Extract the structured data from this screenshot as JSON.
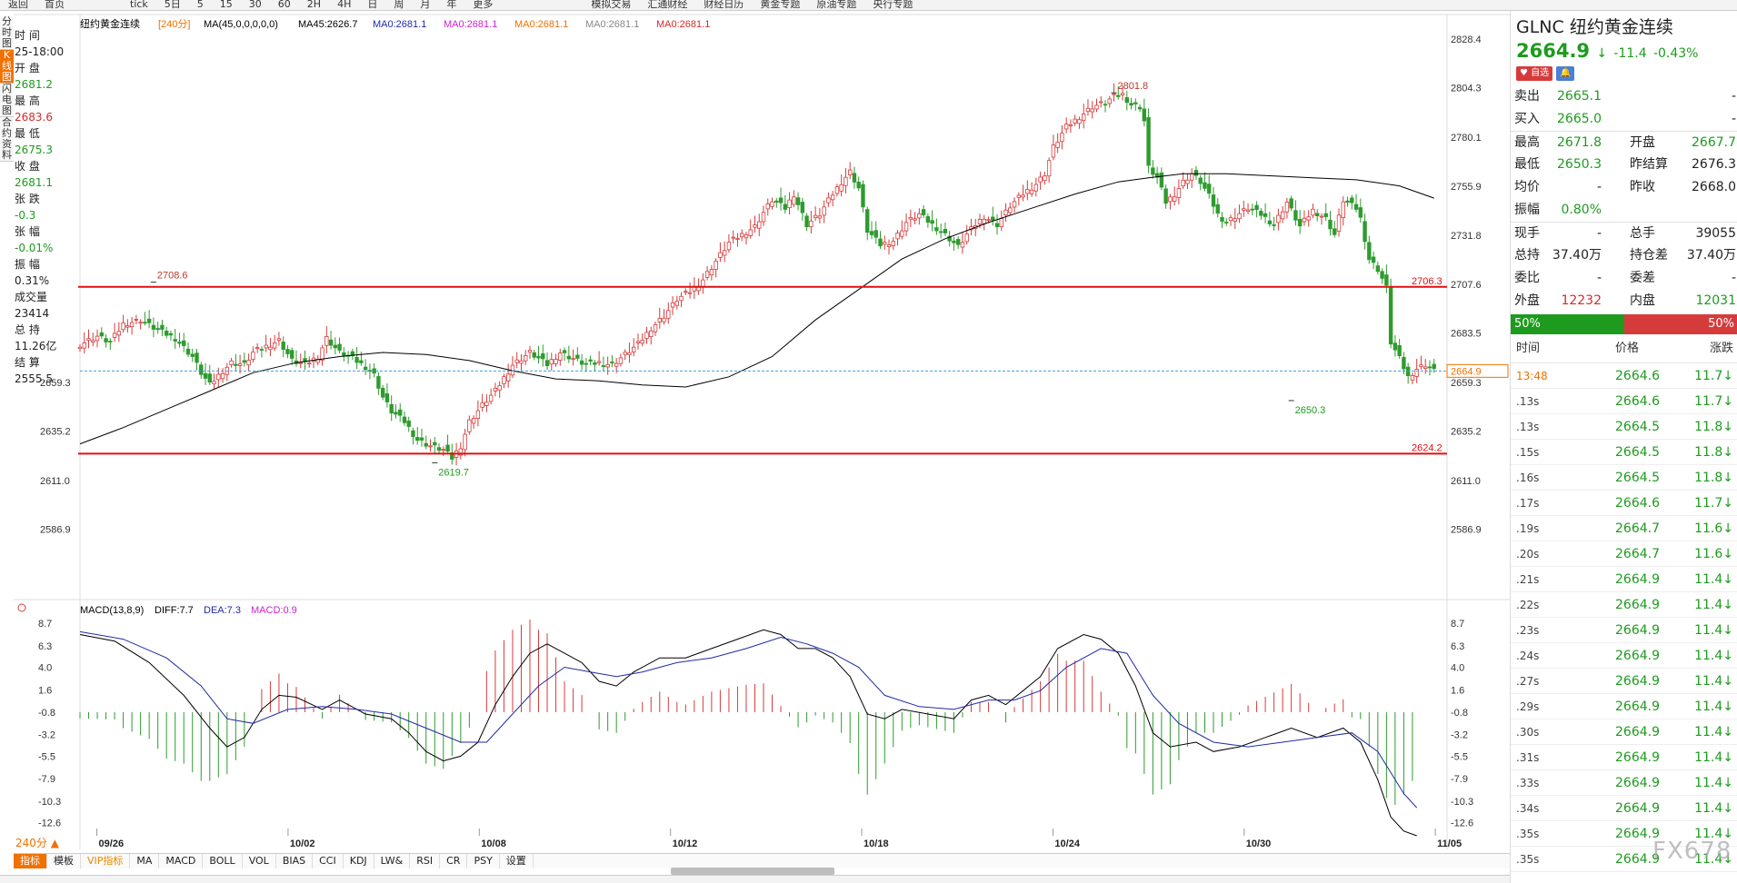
{
  "toolbar": [
    "返回",
    "首页",
    "",
    "",
    "",
    "tick",
    "5日",
    "5",
    "15",
    "30",
    "60",
    "2H",
    "4H",
    "日",
    "周",
    "月",
    "年",
    "更多",
    "",
    "",
    "",
    "",
    "",
    "模拟交易",
    "汇通财经",
    "财经日历",
    "黄金专题",
    "原油专题",
    "央行专题"
  ],
  "left_tabs": [
    "分时图",
    "K线图",
    "闪电图",
    "合约资料"
  ],
  "info": [
    {
      "label": "时 间",
      "value": "25-18:00",
      "color": "#222"
    },
    {
      "label": "开 盘",
      "value": "2681.2",
      "color": "#1e9b1e"
    },
    {
      "label": "最 高",
      "value": "2683.6",
      "color": "#d42a2a"
    },
    {
      "label": "最 低",
      "value": "2675.3",
      "color": "#1e9b1e"
    },
    {
      "label": "收 盘",
      "value": "2681.1",
      "color": "#1e9b1e"
    },
    {
      "label": "张 跌",
      "value": "-0.3",
      "color": "#1e9b1e"
    },
    {
      "label": "张 幅",
      "value": "-0.01%",
      "color": "#1e9b1e"
    },
    {
      "label": "振 幅",
      "value": "0.31%",
      "color": "#222"
    },
    {
      "label": "成交量",
      "value": "23414",
      "color": "#222"
    },
    {
      "label": "总 持",
      "value": "11.26亿",
      "color": "#222"
    },
    {
      "label": "结 算",
      "value": "2555.5",
      "color": "#222"
    }
  ],
  "chart_data": {
    "type": "candlestick",
    "legend": [
      {
        "text": "纽约黄金连续",
        "color": "#000000"
      },
      {
        "text": "[240分]",
        "color": "#f07000"
      },
      {
        "text": "MA(45,0,0,0,0,0)",
        "color": "#000000"
      },
      {
        "text": "MA45:2626.7",
        "color": "#000000"
      },
      {
        "text": "MA0:2681.1",
        "color": "#1f2aa6"
      },
      {
        "text": "MA0:2681.1",
        "color": "#d020d0"
      },
      {
        "text": "MA0:2681.1",
        "color": "#f07000"
      },
      {
        "text": "MA0:2681.1",
        "color": "#888888"
      },
      {
        "text": "MA0:2681.1",
        "color": "#d42a2a"
      }
    ],
    "y_range": [
      2568,
      2835
    ],
    "y_ticks": [
      "2828.4",
      "2804.3",
      "2780.1",
      "2755.9",
      "2731.8",
      "2707.6",
      "2683.5",
      "2659.3",
      "2635.2",
      "2611.0",
      "2586.9"
    ],
    "x_labels": [
      "09/26",
      "10/02",
      "10/08",
      "10/12",
      "10/18",
      "10/24",
      "10/30",
      "11/05"
    ],
    "x_label_index": [
      3,
      37,
      71,
      105,
      139,
      173,
      207,
      241
    ],
    "bars_total": 265,
    "close_path": [
      [
        0,
        2678
      ],
      [
        4,
        2682
      ],
      [
        7,
        2679
      ],
      [
        10,
        2688
      ],
      [
        14,
        2690
      ],
      [
        18,
        2685
      ],
      [
        22,
        2681
      ],
      [
        26,
        2672
      ],
      [
        28,
        2664
      ],
      [
        30,
        2658
      ],
      [
        33,
        2665
      ],
      [
        35,
        2669
      ],
      [
        38,
        2668
      ],
      [
        40,
        2674
      ],
      [
        43,
        2677
      ],
      [
        46,
        2680
      ],
      [
        49,
        2670
      ],
      [
        52,
        2668
      ],
      [
        55,
        2672
      ],
      [
        57,
        2681
      ],
      [
        60,
        2674
      ],
      [
        63,
        2671
      ],
      [
        66,
        2667
      ],
      [
        68,
        2663
      ],
      [
        70,
        2652
      ],
      [
        72,
        2645
      ],
      [
        75,
        2640
      ],
      [
        78,
        2631
      ],
      [
        81,
        2628
      ],
      [
        84,
        2626
      ],
      [
        86,
        2622
      ],
      [
        88,
        2628
      ],
      [
        90,
        2640
      ],
      [
        93,
        2648
      ],
      [
        96,
        2655
      ],
      [
        100,
        2668
      ],
      [
        104,
        2674
      ],
      [
        108,
        2668
      ],
      [
        111,
        2674
      ],
      [
        114,
        2671
      ],
      [
        117,
        2668
      ],
      [
        120,
        2669
      ],
      [
        123,
        2668
      ],
      [
        126,
        2673
      ],
      [
        129,
        2678
      ],
      [
        132,
        2686
      ],
      [
        135,
        2692
      ],
      [
        138,
        2700
      ],
      [
        141,
        2704
      ],
      [
        144,
        2710
      ],
      [
        147,
        2719
      ],
      [
        150,
        2728
      ],
      [
        153,
        2732
      ],
      [
        156,
        2736
      ],
      [
        158,
        2743
      ],
      [
        160,
        2749
      ],
      [
        163,
        2745
      ],
      [
        165,
        2752
      ],
      [
        168,
        2737
      ],
      [
        171,
        2742
      ],
      [
        174,
        2752
      ],
      [
        176,
        2758
      ],
      [
        178,
        2763
      ],
      [
        180,
        2755
      ],
      [
        182,
        2734
      ],
      [
        185,
        2727
      ],
      [
        188,
        2729
      ],
      [
        191,
        2738
      ],
      [
        194,
        2742
      ],
      [
        197,
        2737
      ],
      [
        200,
        2732
      ],
      [
        203,
        2726
      ],
      [
        205,
        2732
      ],
      [
        207,
        2737
      ],
      [
        209,
        2741
      ],
      [
        212,
        2737
      ],
      [
        215,
        2746
      ],
      [
        218,
        2752
      ],
      [
        221,
        2757
      ],
      [
        223,
        2762
      ],
      [
        225,
        2775
      ],
      [
        228,
        2785
      ],
      [
        231,
        2790
      ],
      [
        234,
        2795
      ],
      [
        237,
        2797
      ],
      [
        239,
        2800
      ],
      [
        241,
        2801
      ],
      [
        243,
        2796
      ],
      [
        245,
        2795
      ],
      [
        246,
        2788
      ],
      [
        247,
        2765
      ],
      [
        249,
        2760
      ],
      [
        251,
        2748
      ],
      [
        253,
        2752
      ],
      [
        255,
        2758
      ],
      [
        257,
        2762
      ],
      [
        259,
        2758
      ],
      [
        261,
        2751
      ],
      [
        263,
        2742
      ],
      [
        265,
        2738
      ],
      [
        267,
        2741
      ],
      [
        270,
        2745
      ],
      [
        273,
        2742
      ],
      [
        276,
        2737
      ],
      [
        279,
        2748
      ],
      [
        282,
        2736
      ],
      [
        285,
        2744
      ],
      [
        288,
        2740
      ],
      [
        290,
        2732
      ],
      [
        292,
        2749
      ],
      [
        295,
        2745
      ],
      [
        296,
        2740
      ],
      [
        298,
        2720
      ],
      [
        300,
        2715
      ],
      [
        302,
        2706
      ],
      [
        303,
        2679
      ],
      [
        305,
        2671
      ],
      [
        307,
        2662
      ],
      [
        309,
        2666
      ],
      [
        311,
        2668
      ],
      [
        313,
        2665
      ]
    ],
    "ma45_path": [
      [
        0,
        2629
      ],
      [
        10,
        2637
      ],
      [
        20,
        2646
      ],
      [
        30,
        2655
      ],
      [
        40,
        2664
      ],
      [
        50,
        2669
      ],
      [
        60,
        2672
      ],
      [
        70,
        2674
      ],
      [
        80,
        2673
      ],
      [
        90,
        2670
      ],
      [
        100,
        2665
      ],
      [
        110,
        2661
      ],
      [
        120,
        2660
      ],
      [
        130,
        2658
      ],
      [
        140,
        2657
      ],
      [
        150,
        2662
      ],
      [
        160,
        2672
      ],
      [
        170,
        2690
      ],
      [
        180,
        2705
      ],
      [
        190,
        2720
      ],
      [
        200,
        2730
      ],
      [
        210,
        2738
      ],
      [
        220,
        2745
      ],
      [
        230,
        2752
      ],
      [
        240,
        2758
      ],
      [
        247,
        2760
      ],
      [
        255,
        2762
      ],
      [
        265,
        2762
      ],
      [
        275,
        2761
      ],
      [
        285,
        2760
      ],
      [
        295,
        2759
      ],
      [
        305,
        2756
      ],
      [
        313,
        2750
      ]
    ],
    "annotations": [
      {
        "text": "2708.6",
        "color": "#c0392b"
      },
      {
        "text": "2801.8",
        "color": "#c0392b"
      },
      {
        "text": "2619.7",
        "color": "#1e9b1e"
      },
      {
        "text": "2650.3",
        "color": "#1e9b1e"
      }
    ],
    "annotation_values": [
      2708.6,
      2801.8,
      2619.7,
      2650.3
    ],
    "annotation_index": [
      17,
      239,
      82,
      280
    ],
    "hlines": [
      {
        "value": 2706.3,
        "label": "2706.3",
        "color": "#e01010"
      },
      {
        "value": 2624.2,
        "label": "2624.2",
        "color": "#e01010"
      }
    ],
    "current_price": {
      "value": 2664.9,
      "label": "2664.9",
      "color": "#f07000"
    },
    "macd": {
      "legend": [
        {
          "text": "MACD(13,8,9)",
          "color": "#000000"
        },
        {
          "text": "DIFF:7.7",
          "color": "#000000"
        },
        {
          "text": "DEA:7.3",
          "color": "#1f2aa6"
        },
        {
          "text": "MACD:0.9",
          "color": "#d020d0"
        }
      ],
      "y_range": [
        -14,
        9
      ],
      "y_ticks": [
        "8.7",
        "6.3",
        "4.0",
        "1.6",
        "-0.8",
        "-3.2",
        "-5.5",
        "-7.9",
        "-10.3",
        "-12.6"
      ],
      "diff_path": [
        [
          0,
          7.5
        ],
        [
          8,
          6.8
        ],
        [
          16,
          4.5
        ],
        [
          24,
          1.0
        ],
        [
          30,
          -2.5
        ],
        [
          34,
          -4.5
        ],
        [
          38,
          -3.5
        ],
        [
          42,
          -0.5
        ],
        [
          46,
          1.0
        ],
        [
          50,
          0.8
        ],
        [
          56,
          -0.5
        ],
        [
          60,
          0.5
        ],
        [
          66,
          -1.0
        ],
        [
          72,
          -1.5
        ],
        [
          76,
          -3.0
        ],
        [
          80,
          -5.0
        ],
        [
          84,
          -6.0
        ],
        [
          88,
          -5.5
        ],
        [
          92,
          -4.0
        ],
        [
          96,
          0
        ],
        [
          100,
          3.0
        ],
        [
          104,
          5.5
        ],
        [
          108,
          6.5
        ],
        [
          112,
          5.5
        ],
        [
          116,
          4.5
        ],
        [
          120,
          2.5
        ],
        [
          124,
          2.0
        ],
        [
          128,
          3.5
        ],
        [
          134,
          5.0
        ],
        [
          140,
          5.0
        ],
        [
          146,
          6.0
        ],
        [
          152,
          7.0
        ],
        [
          158,
          8.0
        ],
        [
          162,
          7.5
        ],
        [
          166,
          6.0
        ],
        [
          170,
          6.0
        ],
        [
          174,
          5.0
        ],
        [
          178,
          3.0
        ],
        [
          182,
          -1.0
        ],
        [
          186,
          -1.5
        ],
        [
          190,
          -0.5
        ],
        [
          196,
          -1.0
        ],
        [
          202,
          -1.5
        ],
        [
          206,
          0.5
        ],
        [
          210,
          1.0
        ],
        [
          214,
          0
        ],
        [
          218,
          1.5
        ],
        [
          222,
          3.0
        ],
        [
          226,
          6.0
        ],
        [
          232,
          7.5
        ],
        [
          236,
          7.0
        ],
        [
          240,
          5.5
        ],
        [
          244,
          2.0
        ],
        [
          248,
          -3.0
        ],
        [
          252,
          -4.5
        ],
        [
          258,
          -4.0
        ],
        [
          262,
          -5.0
        ],
        [
          268,
          -4.5
        ],
        [
          274,
          -3.5
        ],
        [
          280,
          -2.5
        ],
        [
          286,
          -3.5
        ],
        [
          292,
          -2.5
        ],
        [
          296,
          -4.0
        ],
        [
          300,
          -8.0
        ],
        [
          303,
          -12.0
        ],
        [
          306,
          -13.5
        ],
        [
          309,
          -14.0
        ]
      ],
      "dea_path": [
        [
          0,
          7.8
        ],
        [
          10,
          7.0
        ],
        [
          20,
          5.0
        ],
        [
          28,
          2.0
        ],
        [
          34,
          -1.5
        ],
        [
          40,
          -2.0
        ],
        [
          48,
          -0.5
        ],
        [
          56,
          -0.2
        ],
        [
          64,
          -0.5
        ],
        [
          72,
          -1.0
        ],
        [
          80,
          -2.5
        ],
        [
          88,
          -4.0
        ],
        [
          94,
          -4.0
        ],
        [
          100,
          -1.0
        ],
        [
          106,
          2.0
        ],
        [
          112,
          4.0
        ],
        [
          118,
          3.5
        ],
        [
          124,
          3.0
        ],
        [
          130,
          3.5
        ],
        [
          138,
          4.5
        ],
        [
          146,
          5.0
        ],
        [
          154,
          6.0
        ],
        [
          162,
          7.2
        ],
        [
          168,
          6.5
        ],
        [
          174,
          5.5
        ],
        [
          180,
          4.0
        ],
        [
          186,
          1.0
        ],
        [
          194,
          -0.2
        ],
        [
          202,
          -0.5
        ],
        [
          210,
          0.5
        ],
        [
          216,
          0.5
        ],
        [
          222,
          1.5
        ],
        [
          228,
          4.0
        ],
        [
          236,
          6.0
        ],
        [
          242,
          5.5
        ],
        [
          248,
          1.0
        ],
        [
          254,
          -2.0
        ],
        [
          262,
          -4.0
        ],
        [
          270,
          -4.5
        ],
        [
          278,
          -4.0
        ],
        [
          286,
          -3.5
        ],
        [
          294,
          -3.0
        ],
        [
          300,
          -5.0
        ],
        [
          306,
          -9.5
        ],
        [
          309,
          -11.0
        ]
      ]
    }
  },
  "right": {
    "title": "GLNC 纽约黄金连续",
    "price": "2664.9",
    "arrow": "↓",
    "change": "-11.4",
    "change_pct": "-0.43%",
    "btn_fav": "自选",
    "btn_alert": "🔔",
    "rows": [
      {
        "a": "卖出",
        "b": "2665.1",
        "bc": "gr",
        "c": "",
        "d": "-",
        "dc": "dk"
      },
      {
        "a": "买入",
        "b": "2665.0",
        "bc": "gr",
        "c": "",
        "d": "-",
        "dc": "dk"
      },
      {
        "a": "最高",
        "b": "2671.8",
        "bc": "gr",
        "c": "开盘",
        "d": "2667.7",
        "dc": "gr",
        "sep": true
      },
      {
        "a": "最低",
        "b": "2650.3",
        "bc": "gr",
        "c": "昨结算",
        "d": "2676.3",
        "dc": "dk"
      },
      {
        "a": "均价",
        "b": "-",
        "bc": "dk",
        "c": "昨收",
        "d": "2668.0",
        "dc": "dk"
      },
      {
        "a": "振幅",
        "b": "0.80%",
        "bc": "gr",
        "c": "",
        "d": "",
        "dc": "dk"
      },
      {
        "a": "现手",
        "b": "-",
        "bc": "dk",
        "c": "总手",
        "d": "39055",
        "dc": "dk",
        "sep": true
      },
      {
        "a": "总持",
        "b": "37.40万",
        "bc": "dk",
        "c": "持仓差",
        "d": "37.40万",
        "dc": "dk"
      },
      {
        "a": "委比",
        "b": "-",
        "bc": "dk",
        "c": "委差",
        "d": "-",
        "dc": "dk"
      },
      {
        "a": "外盘",
        "b": "12232",
        "bc": "rd",
        "c": "内盘",
        "d": "12031",
        "dc": "gr"
      }
    ],
    "buy_pct": "50%",
    "sell_pct": "50%",
    "tick_header": [
      "时间",
      "价格",
      "涨跌"
    ],
    "ticks": [
      {
        "t": "13:48",
        "p": "2664.6",
        "c": "11.7"
      },
      {
        "t": ".13s",
        "p": "2664.6",
        "c": "11.7"
      },
      {
        "t": ".13s",
        "p": "2664.5",
        "c": "11.8"
      },
      {
        "t": ".15s",
        "p": "2664.5",
        "c": "11.8"
      },
      {
        "t": ".16s",
        "p": "2664.5",
        "c": "11.8"
      },
      {
        "t": ".17s",
        "p": "2664.6",
        "c": "11.7"
      },
      {
        "t": ".19s",
        "p": "2664.7",
        "c": "11.6"
      },
      {
        "t": ".20s",
        "p": "2664.7",
        "c": "11.6"
      },
      {
        "t": ".21s",
        "p": "2664.9",
        "c": "11.4"
      },
      {
        "t": ".22s",
        "p": "2664.9",
        "c": "11.4"
      },
      {
        "t": ".23s",
        "p": "2664.9",
        "c": "11.4"
      },
      {
        "t": ".24s",
        "p": "2664.9",
        "c": "11.4"
      },
      {
        "t": ".27s",
        "p": "2664.9",
        "c": "11.4"
      },
      {
        "t": ".29s",
        "p": "2664.9",
        "c": "11.4"
      },
      {
        "t": ".30s",
        "p": "2664.9",
        "c": "11.4"
      },
      {
        "t": ".31s",
        "p": "2664.9",
        "c": "11.4"
      },
      {
        "t": ".33s",
        "p": "2664.9",
        "c": "11.4"
      },
      {
        "t": ".34s",
        "p": "2664.9",
        "c": "11.4"
      },
      {
        "t": ".35s",
        "p": "2664.9",
        "c": "11.4"
      },
      {
        "t": ".35s",
        "p": "2664.9",
        "c": "11.4"
      }
    ]
  },
  "bottom_tabs": [
    "指标",
    "模板",
    "VIP指标",
    "MA",
    "MACD",
    "BOLL",
    "VOL",
    "BIAS",
    "CCI",
    "KDJ",
    "LW&",
    "RSI",
    "CR",
    "PSY",
    "设置"
  ],
  "period_label": "240分 ▲",
  "watermark": "FX678"
}
